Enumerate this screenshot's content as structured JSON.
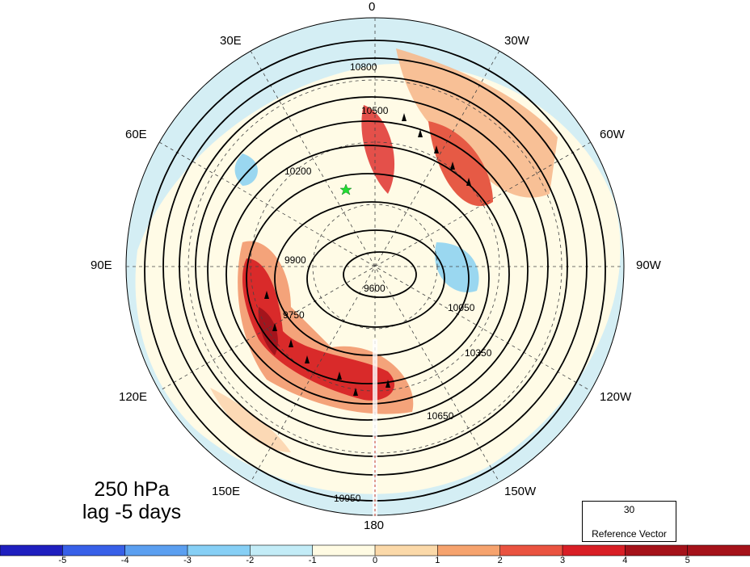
{
  "title": {
    "line1": "250 hPa",
    "line2": "lag -5 days"
  },
  "longitude_labels": [
    "0",
    "30W",
    "60W",
    "90W",
    "120W",
    "150W",
    "180",
    "150E",
    "120E",
    "90E",
    "60E",
    "30E"
  ],
  "contour_labels": [
    "9600",
    "9750",
    "9900",
    "10050",
    "10200",
    "10350",
    "10500",
    "10650",
    "10800",
    "10950"
  ],
  "reference_vector": {
    "value": "30",
    "label": "Reference Vector"
  },
  "colorbar": {
    "ticks": [
      "-5",
      "-4",
      "-3",
      "-2",
      "-1",
      "0",
      "1",
      "2",
      "3",
      "4",
      "5"
    ],
    "colors": [
      "#1f1fbf",
      "#3860e8",
      "#5b9ff0",
      "#86cff5",
      "#c3ecf7",
      "#fffbe3",
      "#fbd9a9",
      "#f6a36e",
      "#ea5340",
      "#d91f26",
      "#a5121a"
    ]
  },
  "marker": {
    "icon": "green-star-icon",
    "color": "#22dd33"
  }
}
